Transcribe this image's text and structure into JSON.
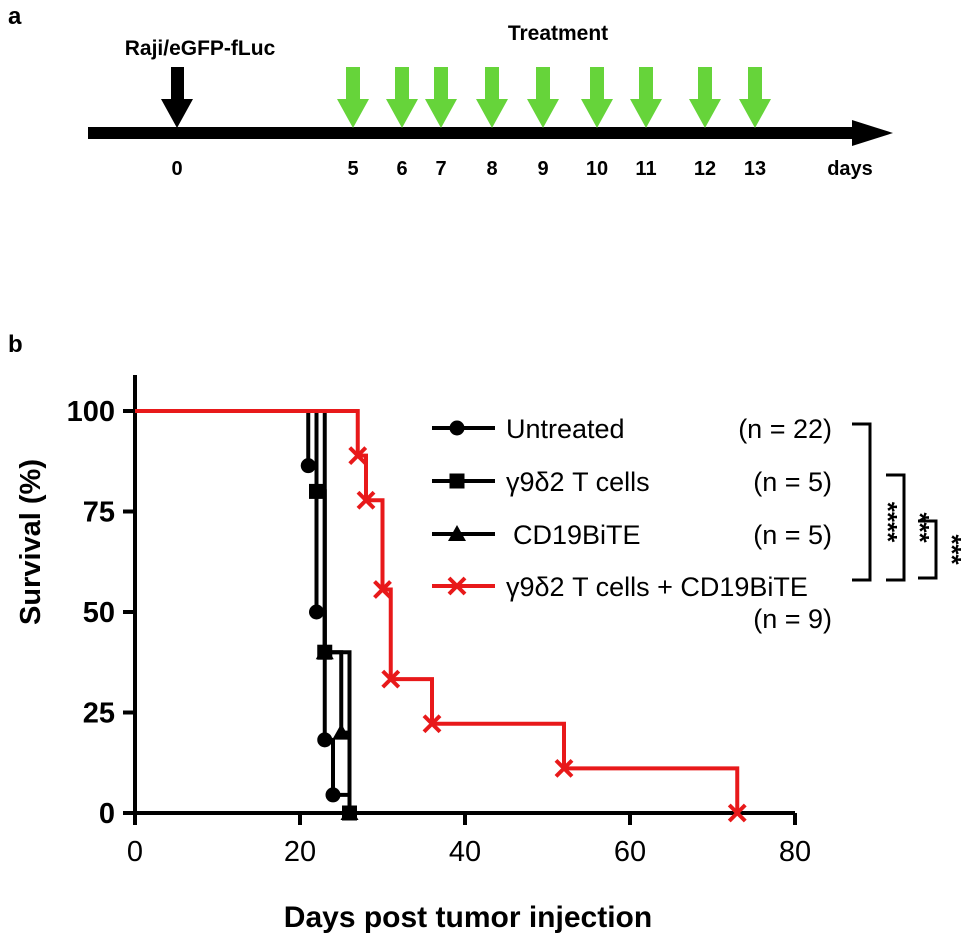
{
  "panel_a": {
    "label": "a",
    "injection_label": "Raji/eGFP-fLuc",
    "treatment_label": "Treatment",
    "injection_day": "0",
    "treatment_days": [
      "5",
      "6",
      "7",
      "8",
      "9",
      "10",
      "11",
      "12",
      "13"
    ],
    "unit_label": "days",
    "colors": {
      "injection_arrow": "#000000",
      "treatment_arrow": "#66d43a",
      "timeline": "#000000"
    }
  },
  "panel_b": {
    "label": "b",
    "significance_brackets": [
      {
        "label": "****",
        "between": [
          "Untreated",
          "γ9δ2 T cells + CD19BiTE"
        ]
      },
      {
        "label": "***",
        "between": [
          "γ9δ2 T cells",
          "γ9δ2 T cells + CD19BiTE"
        ]
      },
      {
        "label": "***",
        "between": [
          "CD19BiTE",
          "γ9δ2 T cells + CD19BiTE"
        ]
      }
    ]
  },
  "chart_data": {
    "type": "line",
    "subtype": "kaplan-meier-step",
    "xlabel": "Days post tumor injection",
    "ylabel": "Survival (%)",
    "xlim": [
      0,
      80
    ],
    "ylim": [
      0,
      100
    ],
    "xticks": [
      0,
      20,
      40,
      60,
      80
    ],
    "yticks": [
      0,
      25,
      50,
      75,
      100
    ],
    "legend_position": "top-right",
    "series": [
      {
        "name": "Untreated",
        "n_label": "(n = 22)",
        "marker": "circle",
        "color": "#000000",
        "steps": [
          [
            0,
            100
          ],
          [
            21,
            86.4
          ],
          [
            22,
            50
          ],
          [
            23,
            18.2
          ],
          [
            24,
            4.5
          ],
          [
            26,
            0
          ]
        ],
        "markers": [
          [
            21,
            86.4
          ],
          [
            22,
            50
          ],
          [
            23,
            18.2
          ],
          [
            24,
            4.5
          ],
          [
            26,
            0
          ]
        ]
      },
      {
        "name": "γ9δ2 T cells",
        "n_label": "(n = 5)",
        "marker": "square",
        "color": "#000000",
        "steps": [
          [
            0,
            100
          ],
          [
            22,
            80
          ],
          [
            23,
            40
          ],
          [
            26,
            0
          ]
        ],
        "markers": [
          [
            22,
            80
          ],
          [
            23,
            40
          ],
          [
            26,
            0
          ]
        ]
      },
      {
        "name": "CD19BiTE",
        "n_label": "(n = 5)",
        "marker": "triangle",
        "color": "#000000",
        "steps": [
          [
            0,
            100
          ],
          [
            23,
            40
          ],
          [
            25,
            20
          ],
          [
            26,
            0
          ]
        ],
        "markers": [
          [
            23,
            40
          ],
          [
            25,
            20
          ],
          [
            26,
            0
          ]
        ]
      },
      {
        "name": "γ9δ2 T cells + CD19BiTE",
        "n_label": "(n = 9)",
        "marker": "x",
        "color": "#e8191a",
        "steps": [
          [
            0,
            100
          ],
          [
            27,
            88.9
          ],
          [
            28,
            77.8
          ],
          [
            30,
            55.6
          ],
          [
            31,
            33.3
          ],
          [
            36,
            22.2
          ],
          [
            52,
            11.1
          ],
          [
            73,
            0
          ]
        ],
        "markers": [
          [
            27,
            88.9
          ],
          [
            28,
            77.8
          ],
          [
            30,
            55.6
          ],
          [
            31,
            33.3
          ],
          [
            36,
            22.2
          ],
          [
            52,
            11.1
          ],
          [
            73,
            0
          ]
        ]
      }
    ]
  }
}
